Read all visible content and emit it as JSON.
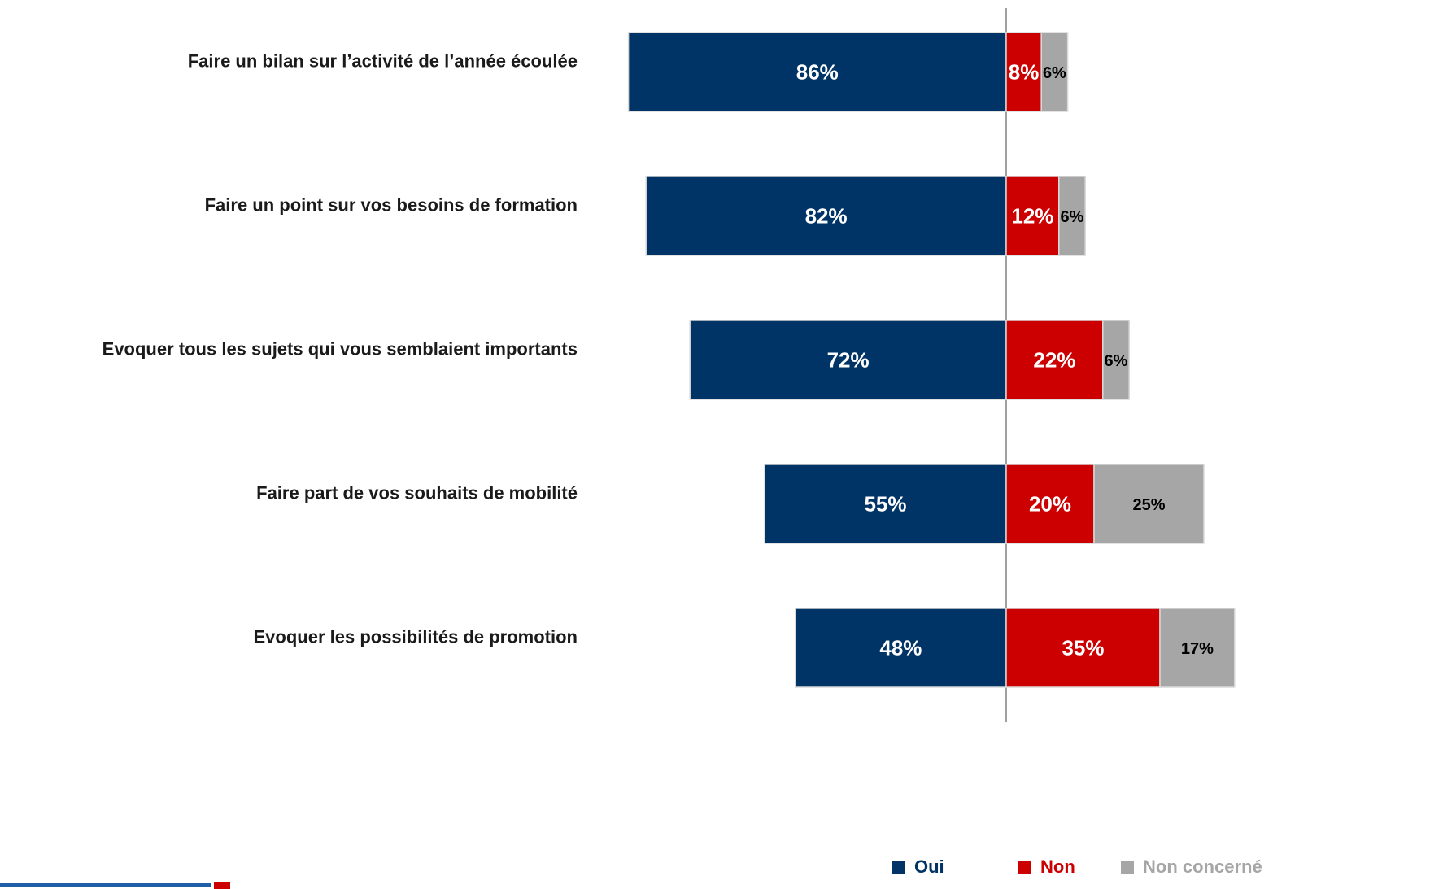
{
  "chart_data": {
    "type": "diverging-bar",
    "categories": [
      "Faire un bilan sur l’activité de l’année écoulée",
      "Faire un point sur vos besoins de formation",
      "Evoquer tous les sujets qui vous semblaient importants",
      "Faire part de vos souhaits de mobilité",
      "Evoquer les possibilités de promotion"
    ],
    "series": [
      {
        "name": "Oui",
        "color": "#003366",
        "values": [
          86,
          82,
          72,
          55,
          48
        ],
        "value_labels": [
          "86%",
          "82%",
          "72%",
          "55%",
          "48%"
        ]
      },
      {
        "name": "Non",
        "color": "#cc0000",
        "values": [
          8,
          12,
          22,
          20,
          35
        ],
        "value_labels": [
          "8%",
          "12%",
          "22%",
          "20%",
          "35%"
        ]
      },
      {
        "name": "Non concerné",
        "color": "#a6a6a6",
        "values": [
          6,
          6,
          6,
          25,
          17
        ],
        "value_labels": [
          "6%",
          "6%",
          "6%",
          "25%",
          "17%"
        ]
      }
    ],
    "legend": "bottom-right"
  }
}
